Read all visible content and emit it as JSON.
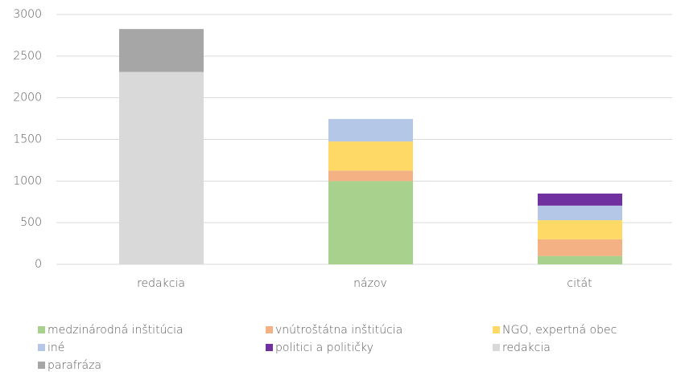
{
  "chart_data": {
    "type": "stacked_bar",
    "categories": [
      "redakcia",
      "názov",
      "citát"
    ],
    "series": [
      {
        "name": "medzinárodná inštitúcia",
        "color": "#a9d18e",
        "values": [
          0,
          1000,
          100
        ]
      },
      {
        "name": "vnútroštátna inštitúcia",
        "color": "#f4b183",
        "values": [
          0,
          125,
          200
        ]
      },
      {
        "name": "NGO, expertná obec",
        "color": "#ffd966",
        "values": [
          0,
          350,
          230
        ]
      },
      {
        "name": "iné",
        "color": "#b4c7e7",
        "values": [
          0,
          270,
          175
        ]
      },
      {
        "name": "politici a političky",
        "color": "#7030a0",
        "values": [
          0,
          0,
          145
        ]
      },
      {
        "name": "redakcia",
        "color": "#d9d9d9",
        "values": [
          2310,
          0,
          0
        ]
      },
      {
        "name": "parafráza",
        "color": "#a6a6a6",
        "values": [
          515,
          0,
          0
        ]
      }
    ],
    "ylim": [
      0,
      3000
    ],
    "yticks": [
      0,
      500,
      1000,
      1500,
      2000,
      2500,
      3000
    ],
    "grid": true,
    "legend": "bottom"
  }
}
